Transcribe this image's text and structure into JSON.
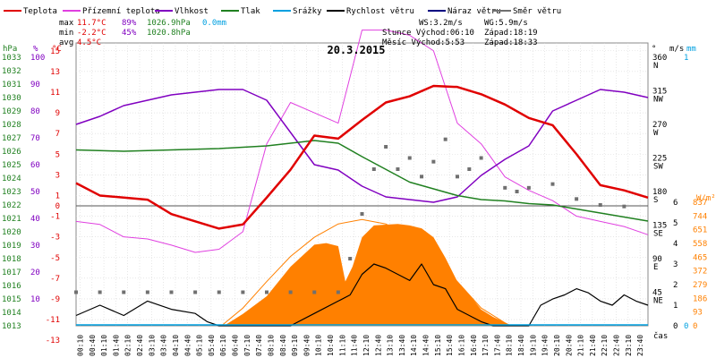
{
  "chart_data": {
    "type": "line",
    "title": "20.3.2015",
    "legend": [
      {
        "label": "Teplota",
        "color": "#e00000"
      },
      {
        "label": "Přízemní teplota",
        "color": "#e040e0"
      },
      {
        "label": "Vlhkost",
        "color": "#8000c0"
      },
      {
        "label": "Tlak",
        "color": "#208020"
      },
      {
        "label": "Srážky",
        "color": "#00a0e0"
      },
      {
        "label": "Rychlost větru",
        "color": "#000000"
      },
      {
        "label": "Náraz větru",
        "color": "#000080"
      },
      {
        "label": "Směr větru",
        "color": "#707070"
      }
    ],
    "stats": {
      "max": {
        "label": "max",
        "temp": "11.7°C",
        "hum": "89%",
        "press": "1026.9hPa",
        "rain": "0.0mm"
      },
      "min": {
        "label": "min",
        "temp": "-2.2°C",
        "hum": "45%",
        "press": "1020.8hPa"
      },
      "avg": {
        "label": "avg",
        "temp": "4.5°C"
      }
    },
    "wind_info": {
      "ws": "WS:3.2m/s",
      "wg": "WG:5.9m/s"
    },
    "sun_info": {
      "rise": "Slunce Východ:06:10",
      "set": "Západ:18:19"
    },
    "moon_info": {
      "rise": "Měsíc  Východ:5:53",
      "set": "Západ:18:33"
    },
    "axis_headers": {
      "hpa": "hPa",
      "pct": "%",
      "degc": "°C",
      "deg": "°",
      "ms": "m/s",
      "mm": "mm",
      "wm2": "W/m²",
      "time": "čas"
    },
    "pressure_ticks": [
      1013,
      1014,
      1015,
      1016,
      1017,
      1018,
      1019,
      1020,
      1021,
      1022,
      1023,
      1024,
      1025,
      1026,
      1027,
      1028,
      1029,
      1030,
      1031,
      1032,
      1033
    ],
    "humidity_ticks": [
      10,
      20,
      30,
      40,
      50,
      60,
      70,
      80,
      90,
      100
    ],
    "temp_ticks": [
      -13,
      -11,
      -9,
      -7,
      -5,
      -3,
      -1,
      0,
      1,
      3,
      5,
      7,
      9,
      11,
      13,
      15
    ],
    "direction_ticks": [
      {
        "deg": 45,
        "label": "45",
        "dir": "NE"
      },
      {
        "deg": 90,
        "label": "90",
        "dir": "E"
      },
      {
        "deg": 135,
        "label": "135",
        "dir": "SE"
      },
      {
        "deg": 180,
        "label": "180",
        "dir": "S"
      },
      {
        "deg": 225,
        "label": "225",
        "dir": "SW"
      },
      {
        "deg": 270,
        "label": "270",
        "dir": "W"
      },
      {
        "deg": 315,
        "label": "315",
        "dir": "NW"
      },
      {
        "deg": 360,
        "label": "360",
        "dir": "N"
      }
    ],
    "wind_ticks": [
      0,
      1,
      2,
      3,
      4,
      5,
      6
    ],
    "rain_ticks": [
      0,
      1
    ],
    "radiation_ticks": [
      0,
      93,
      186,
      279,
      372,
      465,
      558,
      651,
      744,
      837
    ],
    "x_ticks": [
      "00:10",
      "00:40",
      "01:10",
      "01:40",
      "02:10",
      "02:40",
      "03:10",
      "03:40",
      "04:10",
      "04:40",
      "05:10",
      "05:40",
      "06:10",
      "06:40",
      "07:10",
      "07:40",
      "08:10",
      "08:40",
      "09:10",
      "09:40",
      "10:10",
      "10:40",
      "11:10",
      "11:40",
      "12:10",
      "12:40",
      "13:10",
      "13:40",
      "14:10",
      "14:40",
      "15:10",
      "15:40",
      "16:10",
      "16:40",
      "17:10",
      "17:40",
      "18:10",
      "18:40",
      "19:10",
      "19:40",
      "20:10",
      "20:40",
      "21:10",
      "21:40",
      "22:10",
      "22:40",
      "23:10",
      "23:40"
    ],
    "temperature": {
      "hours": [
        0,
        1,
        2,
        3,
        4,
        5,
        6,
        7,
        8,
        9,
        10,
        11,
        12,
        13,
        14,
        15,
        16,
        17,
        18,
        19,
        20,
        21,
        22,
        23,
        24
      ],
      "values": [
        2.2,
        1.0,
        0.8,
        0.6,
        -0.8,
        -1.5,
        -2.2,
        -1.8,
        0.8,
        3.5,
        6.8,
        6.5,
        8.3,
        10.0,
        10.6,
        11.6,
        11.5,
        10.8,
        9.8,
        8.5,
        7.8,
        5.0,
        2.0,
        1.5,
        0.8
      ]
    },
    "ground_temperature": {
      "hours": [
        0,
        1,
        2,
        3,
        4,
        5,
        6,
        7,
        8,
        9,
        10,
        11,
        12,
        13,
        14,
        15,
        16,
        17,
        18,
        19,
        20,
        21,
        22,
        23,
        24
      ],
      "values": [
        -1.5,
        -1.8,
        -3.0,
        -3.2,
        -3.8,
        -4.5,
        -4.2,
        -2.5,
        6.0,
        10.0,
        9.0,
        8.0,
        17.0,
        17.0,
        16.5,
        15.0,
        8.0,
        6.0,
        2.8,
        1.5,
        0.5,
        -1.0,
        -1.5,
        -2.0,
        -2.8
      ]
    },
    "humidity": {
      "hours": [
        0,
        1,
        2,
        3,
        4,
        5,
        6,
        7,
        8,
        9,
        10,
        11,
        12,
        13,
        14,
        15,
        16,
        17,
        18,
        19,
        20,
        21,
        22,
        23,
        24
      ],
      "values": [
        75,
        78,
        82,
        84,
        86,
        87,
        88,
        88,
        84,
        72,
        60,
        58,
        52,
        48,
        47,
        46,
        48,
        56,
        62,
        67,
        80,
        84,
        88,
        87,
        85
      ]
    },
    "pressure": {
      "hours": [
        0,
        2,
        4,
        6,
        8,
        9,
        10,
        11,
        12,
        14,
        15,
        16,
        17,
        18,
        19,
        20,
        21,
        22,
        23,
        24
      ],
      "values": [
        1026.1,
        1026.0,
        1026.1,
        1026.2,
        1026.4,
        1026.6,
        1026.8,
        1026.6,
        1025.6,
        1023.7,
        1023.2,
        1022.7,
        1022.4,
        1022.3,
        1022.1,
        1022.0,
        1021.7,
        1021.4,
        1021.1,
        1020.8
      ]
    },
    "wind_speed_ms": {
      "hours": [
        0,
        1,
        2,
        3,
        4,
        5,
        5.5,
        6,
        7,
        8,
        9,
        10,
        11,
        11.5,
        12,
        12.5,
        13,
        13.5,
        14,
        14.5,
        15,
        15.5,
        16,
        16.5,
        17,
        17.5,
        18,
        18.5,
        19,
        19.5,
        20,
        20.5,
        21,
        21.5,
        22,
        22.5,
        23,
        23.5,
        24
      ],
      "values": [
        0.5,
        1.0,
        0.5,
        1.2,
        0.8,
        0.6,
        0.2,
        0,
        0,
        0,
        0,
        0.6,
        1.2,
        1.5,
        2.5,
        3.0,
        2.8,
        2.5,
        2.2,
        3.0,
        2.0,
        1.8,
        0.8,
        0.5,
        0.2,
        0,
        0,
        0,
        0,
        1.0,
        1.3,
        1.5,
        1.8,
        1.6,
        1.2,
        1.0,
        1.5,
        1.2,
        1.0
      ]
    },
    "wind_direction_deg": {
      "hours": [
        0,
        1,
        2,
        3,
        4,
        5,
        6,
        7,
        8,
        9,
        10,
        11,
        11.5,
        12,
        12.5,
        13,
        13.5,
        14,
        14.5,
        15,
        15.5,
        16,
        16.5,
        17,
        18,
        18.5,
        19,
        20,
        21,
        22,
        23
      ],
      "values": [
        45,
        45,
        45,
        45,
        45,
        45,
        45,
        45,
        45,
        45,
        45,
        45,
        90,
        150,
        210,
        240,
        210,
        225,
        200,
        220,
        250,
        200,
        210,
        225,
        185,
        180,
        185,
        190,
        170,
        162,
        160
      ]
    },
    "solar_radiation_wm2": {
      "hours": [
        6.2,
        7,
        8,
        9,
        10,
        10.5,
        11,
        11.3,
        11.6,
        12,
        12.5,
        13,
        13.5,
        14,
        14.5,
        15,
        15.5,
        16,
        16.5,
        17,
        17.5,
        18.3
      ],
      "values": [
        0,
        80,
        200,
        400,
        550,
        560,
        540,
        300,
        400,
        600,
        680,
        685,
        690,
        680,
        660,
        600,
        460,
        300,
        210,
        110,
        60,
        0
      ]
    },
    "radiation_curve_wm2": {
      "hours": [
        6.1,
        7,
        8,
        9,
        10,
        11,
        12,
        13,
        14,
        15,
        16,
        17,
        18.2
      ],
      "values": [
        0,
        120,
        300,
        470,
        600,
        690,
        720,
        690,
        600,
        470,
        300,
        120,
        0
      ]
    }
  }
}
